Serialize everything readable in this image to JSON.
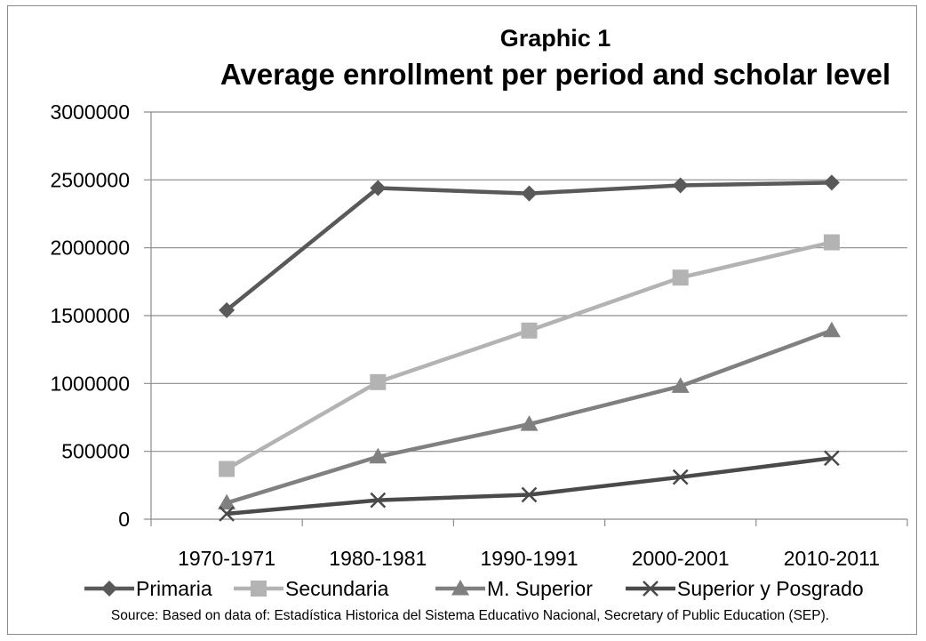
{
  "chart_data": {
    "type": "line",
    "title": "Graphic 1",
    "subtitle": "Average enrollment per period and scholar level",
    "categories": [
      "1970-1971",
      "1980-1981",
      "1990-1991",
      "2000-2001",
      "2010-2011"
    ],
    "y_ticks": [
      "0",
      "500000",
      "1000000",
      "1500000",
      "2000000",
      "2500000",
      "3000000"
    ],
    "ylim": [
      0,
      3000000
    ],
    "grid": true,
    "legend_position": "bottom",
    "series": [
      {
        "name": "Primaria",
        "marker": "diamond",
        "color": "#595959",
        "values": [
          1540000,
          2440000,
          2400000,
          2460000,
          2480000
        ]
      },
      {
        "name": "Secundaria",
        "marker": "square",
        "color": "#b3b3b3",
        "values": [
          370000,
          1010000,
          1390000,
          1780000,
          2040000
        ]
      },
      {
        "name": "M. Superior",
        "marker": "triangle",
        "color": "#808080",
        "values": [
          120000,
          460000,
          700000,
          980000,
          1390000
        ]
      },
      {
        "name": "Superior y Posgrado",
        "marker": "x",
        "color": "#4a4a4a",
        "values": [
          40000,
          140000,
          180000,
          310000,
          450000
        ]
      }
    ],
    "source": "Source: Based on data of: Estadística Historica del Sistema Educativo Nacional, Secretary of Public Education (SEP)."
  }
}
